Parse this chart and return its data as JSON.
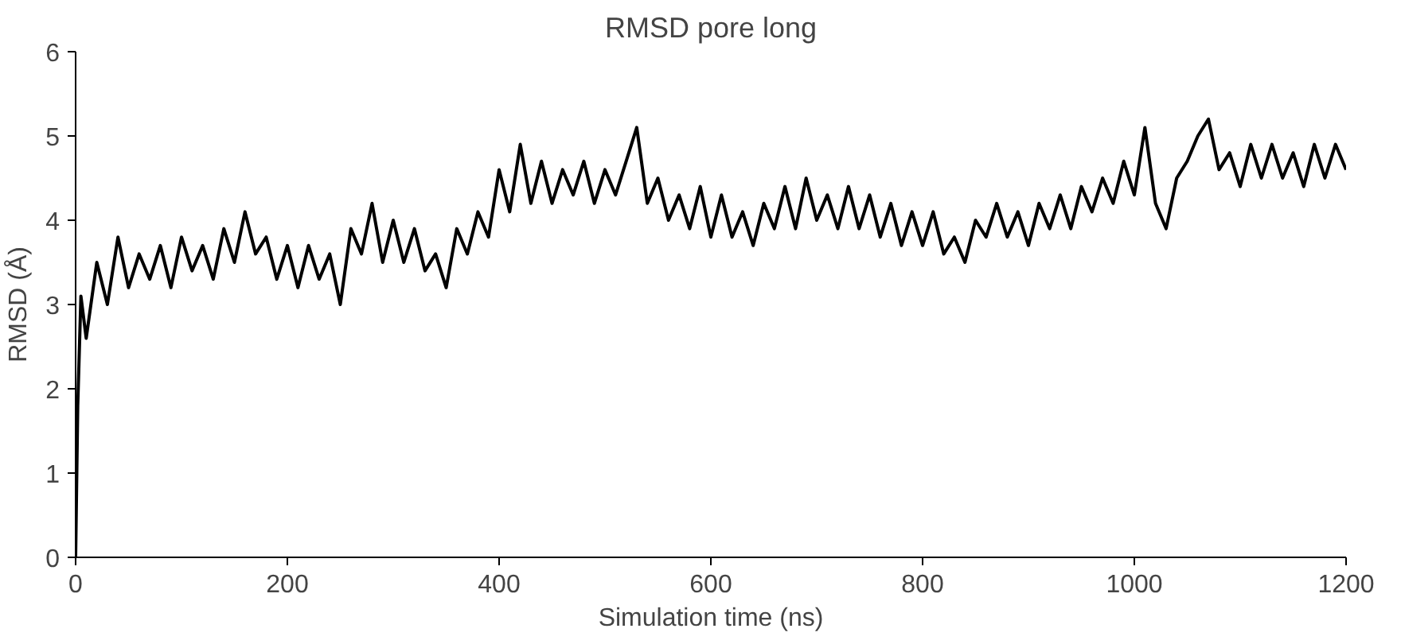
{
  "chart_data": {
    "type": "line",
    "title": "RMSD pore long",
    "xlabel": "Simulation time (ns)",
    "ylabel": "RMSD (Å)",
    "x": [
      0,
      2,
      5,
      10,
      20,
      30,
      40,
      50,
      60,
      70,
      80,
      90,
      100,
      110,
      120,
      130,
      140,
      150,
      160,
      170,
      180,
      190,
      200,
      210,
      220,
      230,
      240,
      250,
      260,
      270,
      280,
      290,
      300,
      310,
      320,
      330,
      340,
      350,
      360,
      370,
      380,
      390,
      400,
      410,
      420,
      430,
      440,
      450,
      460,
      470,
      480,
      490,
      500,
      510,
      520,
      530,
      540,
      550,
      560,
      570,
      580,
      590,
      600,
      610,
      620,
      630,
      640,
      650,
      660,
      670,
      680,
      690,
      700,
      710,
      720,
      730,
      740,
      750,
      760,
      770,
      780,
      790,
      800,
      810,
      820,
      830,
      840,
      850,
      860,
      870,
      880,
      890,
      900,
      910,
      920,
      930,
      940,
      950,
      960,
      970,
      980,
      990,
      1000,
      1010,
      1020,
      1030,
      1040,
      1050,
      1060,
      1070,
      1080,
      1090,
      1100,
      1110,
      1120,
      1130,
      1140,
      1150,
      1160,
      1170,
      1180,
      1190,
      1200
    ],
    "series": [
      {
        "color": "#000000",
        "values": [
          0,
          1.8,
          3.1,
          2.6,
          3.5,
          3.0,
          3.8,
          3.2,
          3.6,
          3.3,
          3.7,
          3.2,
          3.8,
          3.4,
          3.7,
          3.3,
          3.9,
          3.5,
          4.1,
          3.6,
          3.8,
          3.3,
          3.7,
          3.2,
          3.7,
          3.3,
          3.6,
          3.0,
          3.9,
          3.6,
          4.2,
          3.5,
          4.0,
          3.5,
          3.9,
          3.4,
          3.6,
          3.2,
          3.9,
          3.6,
          4.1,
          3.8,
          4.6,
          4.1,
          4.9,
          4.2,
          4.7,
          4.2,
          4.6,
          4.3,
          4.7,
          4.2,
          4.6,
          4.3,
          4.7,
          5.1,
          4.2,
          4.5,
          4.0,
          4.3,
          3.9,
          4.4,
          3.8,
          4.3,
          3.8,
          4.1,
          3.7,
          4.2,
          3.9,
          4.4,
          3.9,
          4.5,
          4.0,
          4.3,
          3.9,
          4.4,
          3.9,
          4.3,
          3.8,
          4.2,
          3.7,
          4.1,
          3.7,
          4.1,
          3.6,
          3.8,
          3.5,
          4.0,
          3.8,
          4.2,
          3.8,
          4.1,
          3.7,
          4.2,
          3.9,
          4.3,
          3.9,
          4.4,
          4.1,
          4.5,
          4.2,
          4.7,
          4.3,
          5.1,
          4.2,
          3.9,
          4.5,
          4.7,
          5.0,
          5.2,
          4.6,
          4.8,
          4.4,
          4.9,
          4.5,
          4.9,
          4.5,
          4.8,
          4.4,
          4.9,
          4.5,
          4.9,
          4.6
        ]
      }
    ],
    "xlim": [
      0,
      1200
    ],
    "ylim": [
      0,
      6
    ],
    "xticks": [
      0,
      200,
      400,
      600,
      800,
      1000,
      1200
    ],
    "yticks": [
      0,
      1,
      2,
      3,
      4,
      5,
      6
    ],
    "grid": false,
    "marker": "none",
    "line_style": "solid"
  }
}
